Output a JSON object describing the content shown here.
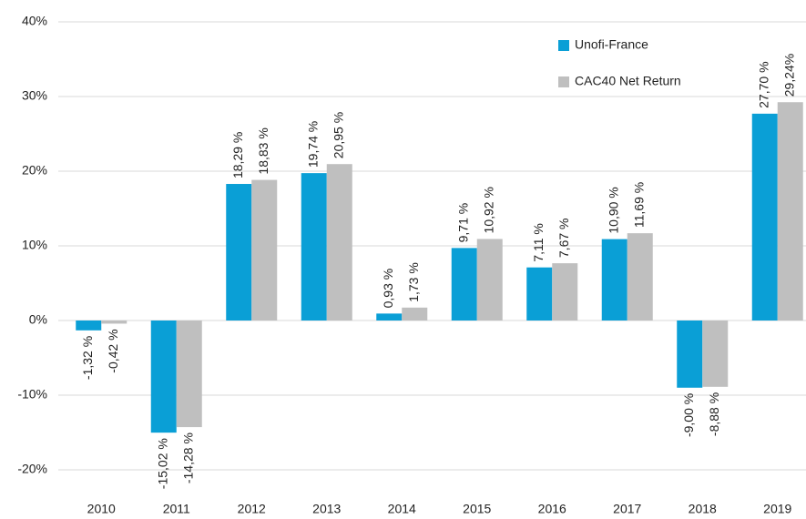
{
  "chart_data": {
    "type": "bar",
    "categories": [
      "2010",
      "2011",
      "2012",
      "2013",
      "2014",
      "2015",
      "2016",
      "2017",
      "2018",
      "2019"
    ],
    "series": [
      {
        "name": "Unofi-France",
        "color": "#0a9fd6",
        "values": [
          -1.32,
          -15.02,
          18.29,
          19.74,
          0.93,
          9.71,
          7.11,
          10.9,
          -9.0,
          27.7
        ],
        "value_labels": [
          "-1,32 %",
          "-15,02 %",
          "18,29 %",
          "19,74 %",
          "0,93 %",
          "9,71 %",
          "7,11 %",
          "10,90 %",
          "-9,00 %",
          "27,70 %"
        ]
      },
      {
        "name": "CAC40 Net Return",
        "color": "#bfbfbf",
        "values": [
          -0.42,
          -14.28,
          18.83,
          20.95,
          1.73,
          10.92,
          7.67,
          11.69,
          -8.88,
          29.24
        ],
        "value_labels": [
          "-0,42 %",
          "-14,28 %",
          "18,83 %",
          "20,95 %",
          "1,73 %",
          "10,92 %",
          "7,67 %",
          "11,69 %",
          "-8,88 %",
          "29,24%"
        ]
      }
    ],
    "ylim": [
      -20,
      40
    ],
    "yticks": [
      {
        "value": -20,
        "label": "-20%"
      },
      {
        "value": -10,
        "label": "-10%"
      },
      {
        "value": 0,
        "label": "0%"
      },
      {
        "value": 10,
        "label": "10%"
      },
      {
        "value": 20,
        "label": "20%"
      },
      {
        "value": 30,
        "label": "30%"
      },
      {
        "value": 40,
        "label": "40%"
      }
    ],
    "grid": true,
    "legend": "top-right"
  }
}
